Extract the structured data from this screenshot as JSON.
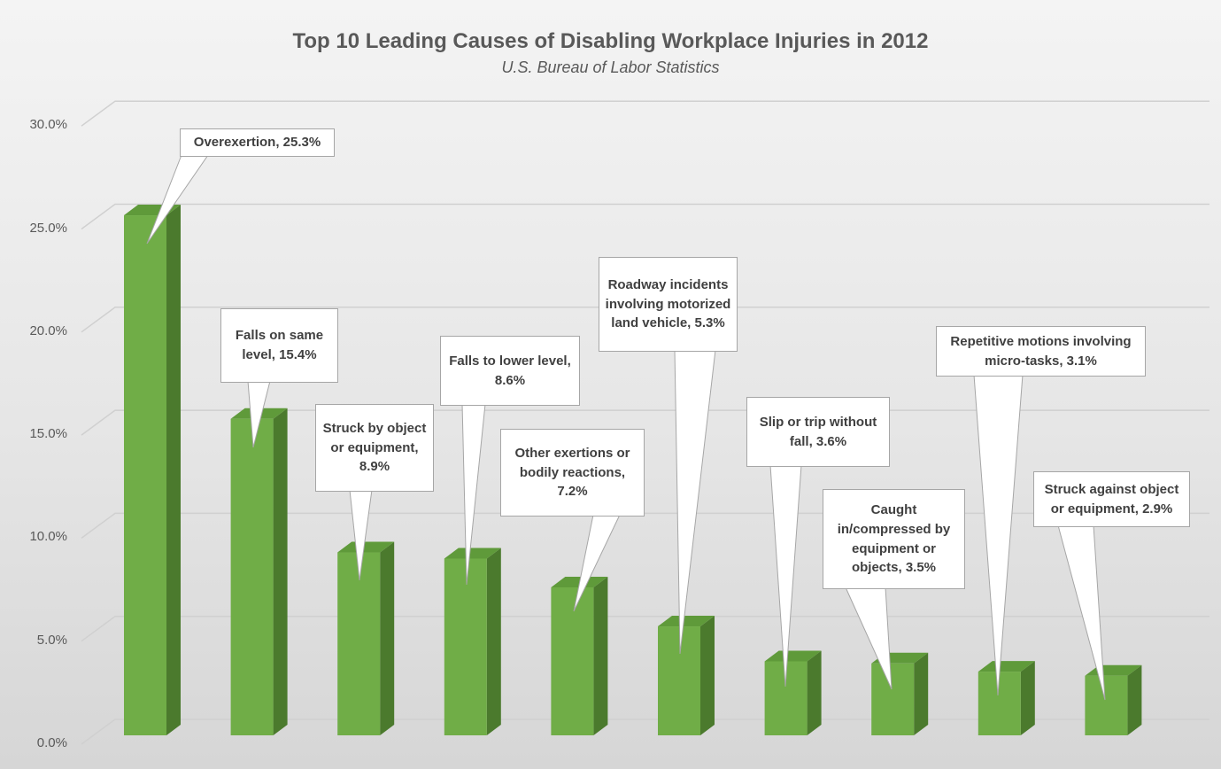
{
  "chart_data": {
    "type": "bar",
    "title": "Top 10 Leading Causes of Disabling Workplace Injuries in 2012",
    "subtitle": "U.S. Bureau of Labor Statistics",
    "xlabel": "",
    "ylabel": "",
    "ylim": [
      0,
      30
    ],
    "yticks": [
      "0.0%",
      "5.0%",
      "10.0%",
      "15.0%",
      "20.0%",
      "25.0%",
      "30.0%"
    ],
    "grid": true,
    "categories": [
      "Overexertion",
      "Falls on same level",
      "Struck by object or equipment",
      "Falls to lower level",
      "Other exertions or bodily reactions",
      "Roadway incidents involving motorized land vehicle",
      "Slip or trip without fall",
      "Caught in/compressed by equipment or objects",
      "Repetitive motions involving micro-tasks",
      "Struck against object or equipment"
    ],
    "values": [
      25.3,
      15.4,
      8.9,
      8.6,
      7.2,
      5.3,
      3.6,
      3.5,
      3.1,
      2.9
    ],
    "data_labels": [
      "Overexertion, 25.3%",
      "Falls on same level, 15.4%",
      "Struck by object or equipment, 8.9%",
      "Falls to lower level, 8.6%",
      "Other exertions or bodily reactions, 7.2%",
      "Roadway incidents involving motorized land vehicle, 5.3%",
      "Slip or trip without fall, 3.6%",
      "Caught in/compressed by equipment or objects, 3.5%",
      "Repetitive motions involving micro-tasks, 3.1%",
      "Struck against object or equipment, 2.9%"
    ],
    "colors": {
      "front": "#70ad47",
      "side": "#4b7a2d",
      "top": "#5f9a3a"
    }
  }
}
